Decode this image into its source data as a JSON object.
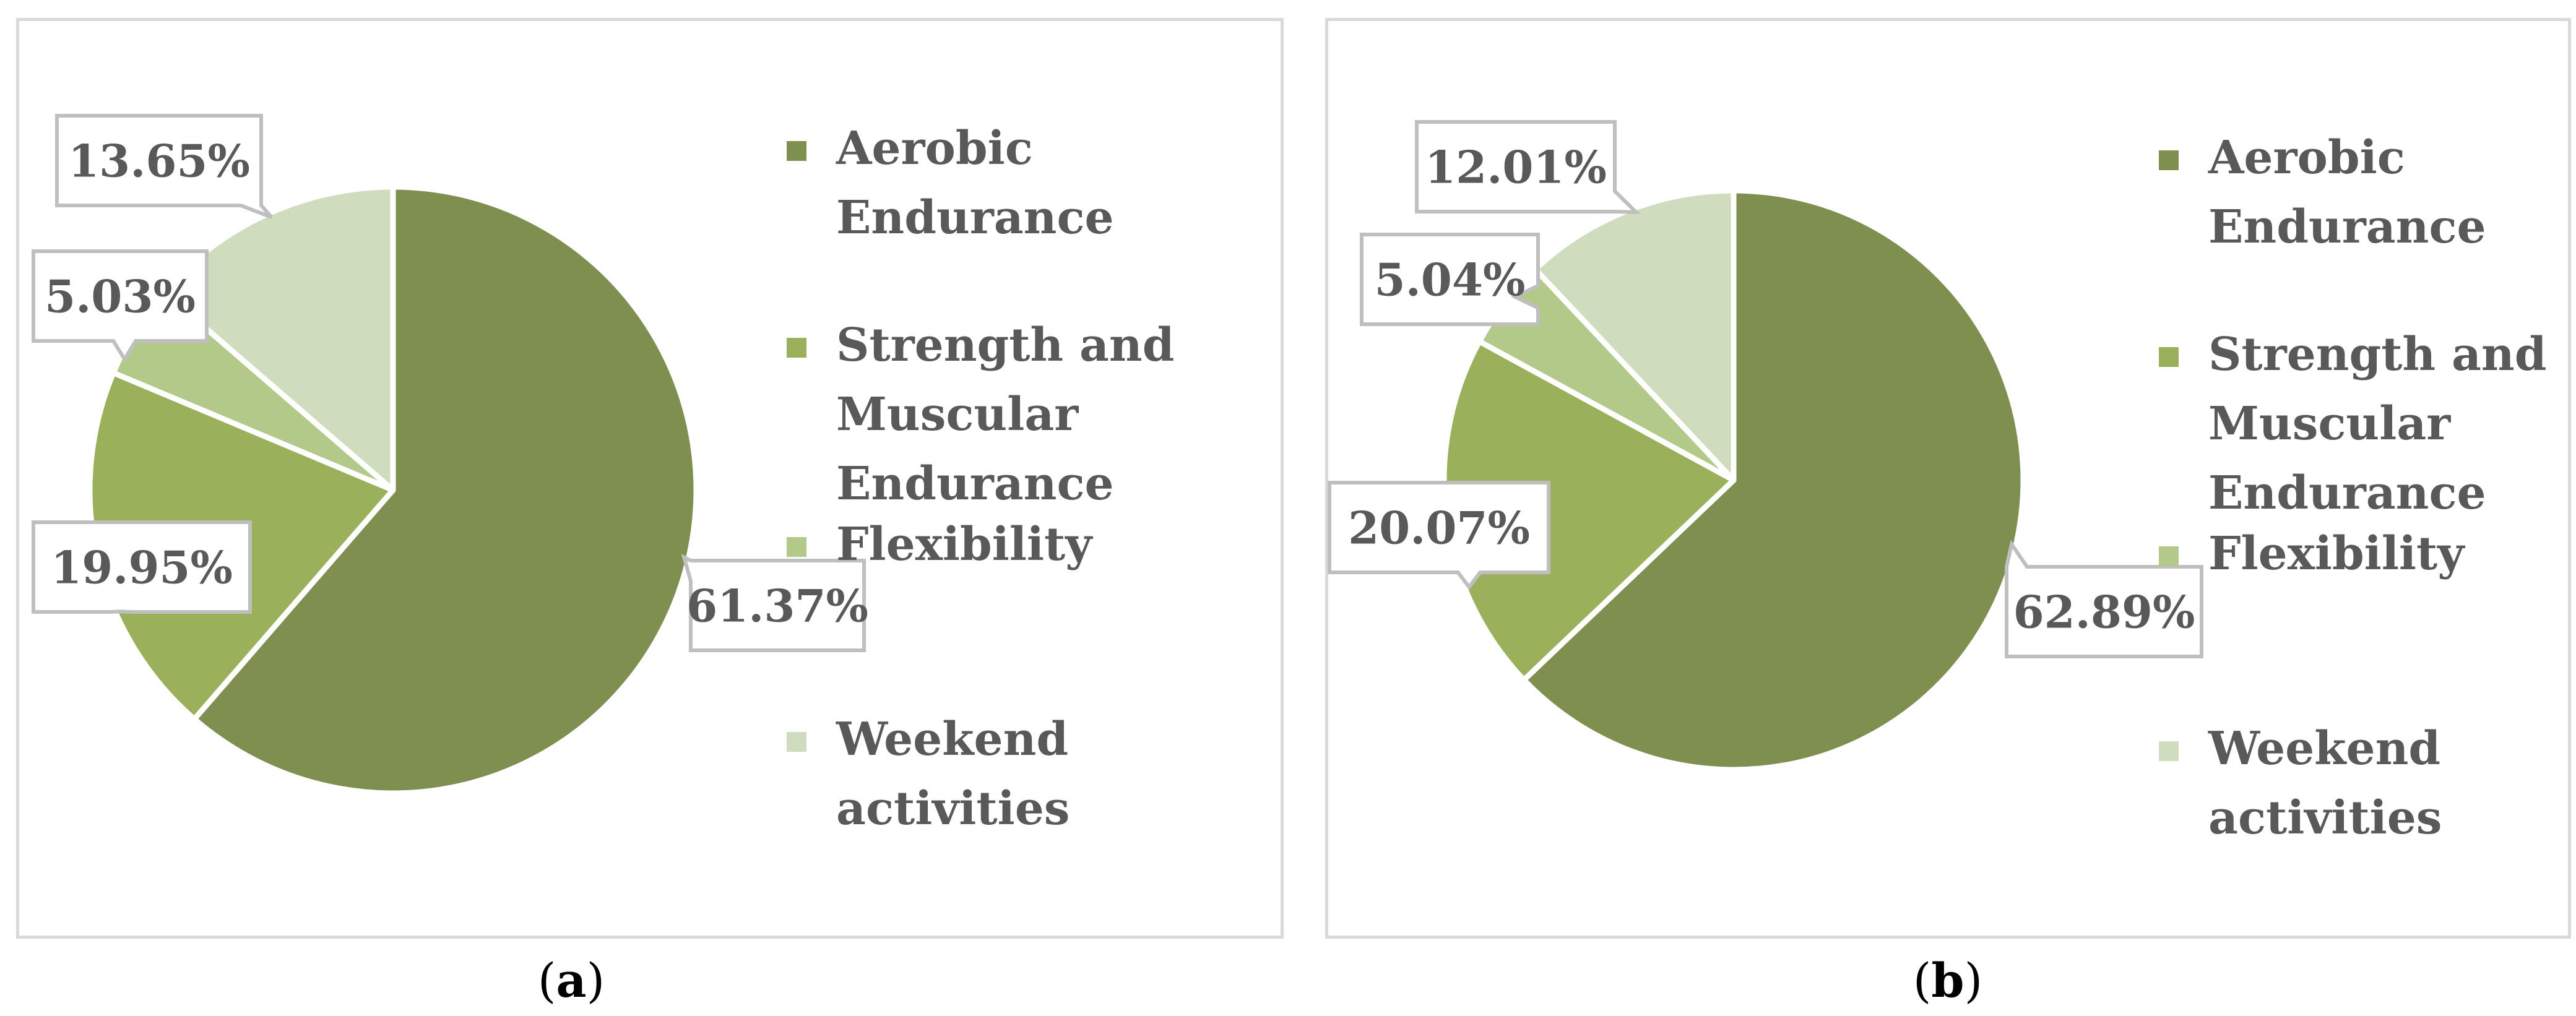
{
  "legend_labels": [
    "Aerobic Endurance",
    "Strength and Muscular Endurance",
    "Flexibility",
    "Weekend activities"
  ],
  "colors": {
    "aerobic": "#7f8f4f",
    "strength": "#9ab05b",
    "flexibility": "#b3c98a",
    "weekend": "#cfdcbd",
    "label_text": "#595959",
    "label_border": "#bfbfbf",
    "frame_border": "#d9d9d9"
  },
  "chart_data": [
    {
      "type": "pie",
      "panel_label": "a",
      "categories": [
        "Aerobic Endurance",
        "Strength and Muscular Endurance",
        "Flexibility",
        "Weekend activities"
      ],
      "values": [
        61.37,
        19.95,
        5.03,
        13.65
      ],
      "data_labels": [
        "61.37%",
        "19.95%",
        "5.03%",
        "13.65%"
      ],
      "start_angle_deg": 0,
      "direction": "clockwise",
      "legend_placement": "right"
    },
    {
      "type": "pie",
      "panel_label": "b",
      "categories": [
        "Aerobic Endurance",
        "Strength and Muscular Endurance",
        "Flexibility",
        "Weekend activities"
      ],
      "values": [
        62.89,
        20.07,
        5.04,
        12.01
      ],
      "data_labels": [
        "62.89%",
        "20.07%",
        "5.04%",
        "12.01%"
      ],
      "start_angle_deg": 0,
      "direction": "clockwise",
      "legend_placement": "right"
    }
  ]
}
